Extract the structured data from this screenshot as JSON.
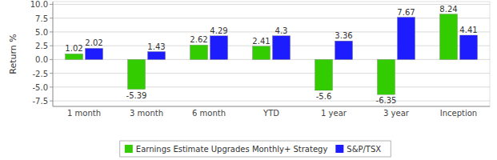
{
  "chart_data": {
    "type": "bar",
    "y_label": "Return %",
    "categories": [
      "1 month",
      "3 month",
      "6 month",
      "YTD",
      "1 year",
      "3 year",
      "Inception"
    ],
    "series": [
      {
        "name": "Earnings Estimate Upgrades Monthly+ Strategy",
        "color": "#33cc00",
        "values": [
          1.02,
          -5.39,
          2.62,
          2.41,
          -5.6,
          -6.35,
          8.24
        ]
      },
      {
        "name": "S&P/TSX",
        "color": "#1c1cff",
        "values": [
          2.02,
          1.43,
          4.29,
          4.3,
          3.36,
          7.67,
          4.41
        ]
      }
    ],
    "ylim": [
      -8.5,
      10.5
    ],
    "yticks": [
      {
        "value": -7.5,
        "label": "-7.5"
      },
      {
        "value": -5,
        "label": "-5.0"
      },
      {
        "value": -2.5,
        "label": "-2.5"
      },
      {
        "value": 0,
        "label": "0.0"
      },
      {
        "value": 2.5,
        "label": "2.5"
      },
      {
        "value": 5,
        "label": "5.0"
      },
      {
        "value": 7.5,
        "label": "7.5"
      },
      {
        "value": 10,
        "label": "10.0"
      }
    ],
    "grid": true,
    "data_labels": true,
    "legend": "bottom"
  }
}
